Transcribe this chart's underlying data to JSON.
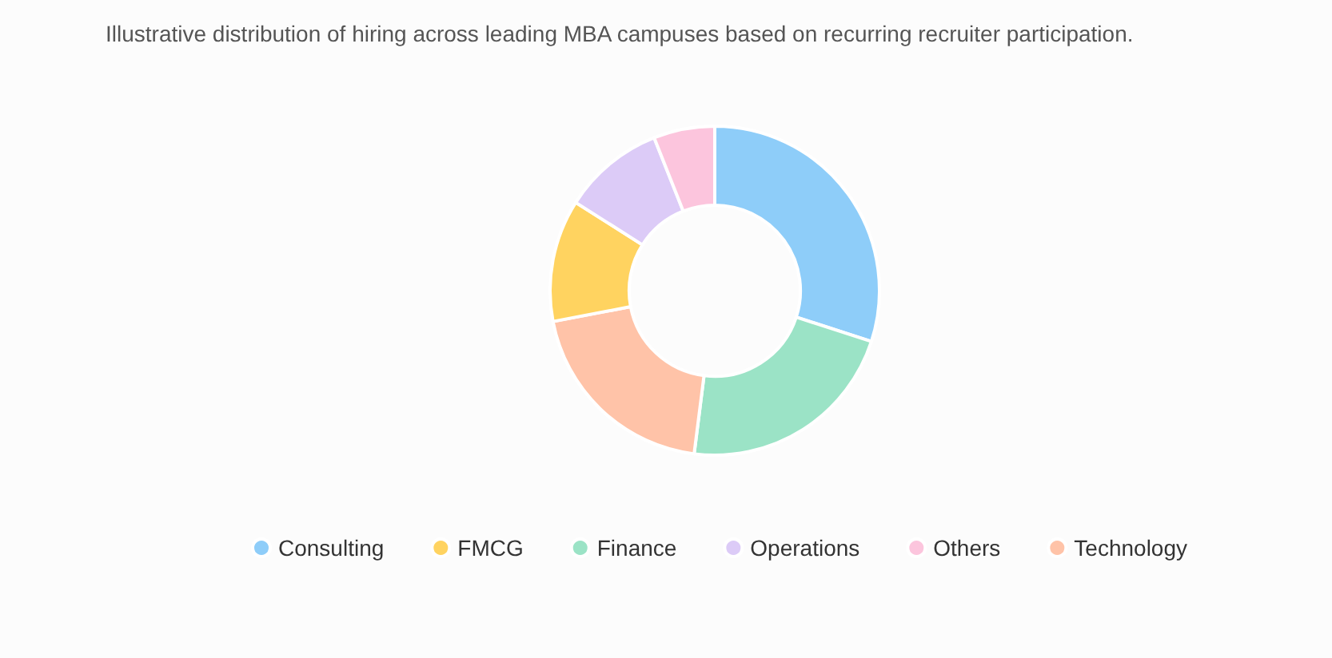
{
  "chart_data": {
    "type": "donut",
    "title": "Illustrative distribution of hiring across leading MBA campuses based on recurring recruiter participation.",
    "categories": [
      "Consulting",
      "Finance",
      "Technology",
      "FMCG",
      "Operations",
      "Others"
    ],
    "values": [
      30,
      22,
      20,
      12,
      10,
      6
    ],
    "colors": [
      "#8ecdf9",
      "#9be3c6",
      "#ffc3a8",
      "#ffd360",
      "#dccbf7",
      "#fcc5dd"
    ],
    "legend": "bottom"
  }
}
